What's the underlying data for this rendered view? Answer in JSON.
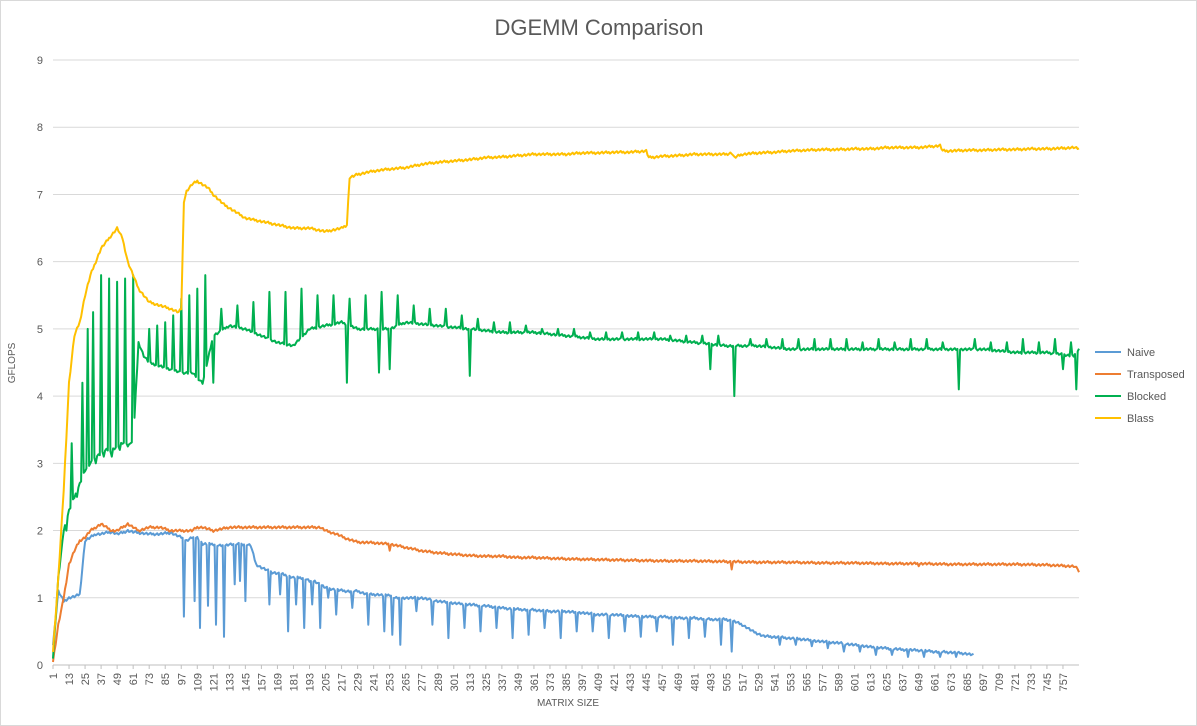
{
  "chart_data": {
    "type": "line",
    "title": "DGEMM Comparison",
    "xlabel": "MATRIX SIZE",
    "ylabel": "GFLOPS",
    "ylim": [
      0,
      9
    ],
    "yticks": [
      0,
      1,
      2,
      3,
      4,
      5,
      6,
      7,
      8,
      9
    ],
    "xlim": [
      1,
      769
    ],
    "xticks_start": 1,
    "xticks_step": 12,
    "xticks_end": 757,
    "grid": "horizontal",
    "legend_position": "right",
    "series": [
      {
        "name": "Naive",
        "color": "#5b9bd5",
        "x": [
          1,
          5,
          9,
          13,
          17,
          21,
          25,
          29,
          33,
          37,
          41,
          45,
          49,
          53,
          57,
          61,
          65,
          73,
          81,
          89,
          97,
          101,
          105,
          109,
          113,
          117,
          121,
          125,
          129,
          133,
          137,
          141,
          145,
          149,
          153,
          157,
          165,
          173,
          181,
          185,
          189,
          193,
          197,
          201,
          205,
          213,
          221,
          229,
          237,
          245,
          249,
          253,
          257,
          265,
          277,
          289,
          301,
          313,
          325,
          337,
          349,
          361,
          373,
          385,
          397,
          409,
          421,
          433,
          445,
          457,
          469,
          481,
          493,
          505,
          511,
          517,
          525,
          533,
          541,
          553,
          565,
          577,
          589,
          601,
          613,
          625,
          637,
          649,
          661,
          673,
          685,
          690
        ],
        "values": [
          0.3,
          1.1,
          0.95,
          1.0,
          1.02,
          1.05,
          1.85,
          1.9,
          1.95,
          1.95,
          1.97,
          1.98,
          1.95,
          1.97,
          2.0,
          1.98,
          1.97,
          1.95,
          1.95,
          1.97,
          1.9,
          1.85,
          1.9,
          1.9,
          1.8,
          1.8,
          1.8,
          1.78,
          1.78,
          1.8,
          1.8,
          1.8,
          1.8,
          1.78,
          1.5,
          1.45,
          1.38,
          1.35,
          1.3,
          1.3,
          1.3,
          1.25,
          1.25,
          1.2,
          1.15,
          1.12,
          1.1,
          1.1,
          1.05,
          1.05,
          1.03,
          1.05,
          1.0,
          1.0,
          1.0,
          0.95,
          0.92,
          0.9,
          0.88,
          0.85,
          0.83,
          0.82,
          0.8,
          0.8,
          0.78,
          0.75,
          0.75,
          0.73,
          0.72,
          0.72,
          0.7,
          0.7,
          0.68,
          0.68,
          0.65,
          0.6,
          0.5,
          0.43,
          0.42,
          0.4,
          0.38,
          0.35,
          0.33,
          0.3,
          0.27,
          0.25,
          0.23,
          0.22,
          0.2,
          0.19,
          0.17,
          0.15
        ],
        "dips": [
          [
            99,
            0.72
          ],
          [
            107,
            0.95
          ],
          [
            111,
            0.55
          ],
          [
            117,
            0.88
          ],
          [
            123,
            0.6
          ],
          [
            129,
            0.42
          ],
          [
            137,
            1.2
          ],
          [
            141,
            1.25
          ],
          [
            145,
            0.95
          ],
          [
            163,
            0.9
          ],
          [
            171,
            1.05
          ],
          [
            177,
            0.5
          ],
          [
            183,
            0.9
          ],
          [
            189,
            0.55
          ],
          [
            195,
            0.9
          ],
          [
            201,
            0.55
          ],
          [
            207,
            1.0
          ],
          [
            213,
            0.75
          ],
          [
            225,
            0.85
          ],
          [
            237,
            0.6
          ],
          [
            249,
            0.5
          ],
          [
            255,
            0.45
          ],
          [
            261,
            0.3
          ],
          [
            273,
            0.8
          ],
          [
            285,
            0.6
          ],
          [
            297,
            0.4
          ],
          [
            309,
            0.55
          ],
          [
            321,
            0.5
          ],
          [
            333,
            0.55
          ],
          [
            345,
            0.4
          ],
          [
            357,
            0.45
          ],
          [
            369,
            0.55
          ],
          [
            381,
            0.4
          ],
          [
            393,
            0.5
          ],
          [
            405,
            0.5
          ],
          [
            417,
            0.4
          ],
          [
            429,
            0.5
          ],
          [
            441,
            0.42
          ],
          [
            453,
            0.5
          ],
          [
            465,
            0.3
          ],
          [
            477,
            0.4
          ],
          [
            489,
            0.42
          ],
          [
            501,
            0.3
          ],
          [
            509,
            0.2
          ],
          [
            521,
            0.55
          ],
          [
            545,
            0.3
          ],
          [
            557,
            0.3
          ],
          [
            569,
            0.28
          ],
          [
            581,
            0.25
          ],
          [
            593,
            0.2
          ],
          [
            605,
            0.2
          ],
          [
            617,
            0.15
          ],
          [
            629,
            0.15
          ],
          [
            641,
            0.12
          ],
          [
            653,
            0.12
          ],
          [
            665,
            0.12
          ],
          [
            677,
            0.12
          ]
        ]
      },
      {
        "name": "Transposed",
        "color": "#ed7d31",
        "x": [
          1,
          5,
          9,
          13,
          17,
          21,
          25,
          29,
          33,
          37,
          41,
          45,
          49,
          53,
          57,
          61,
          65,
          73,
          81,
          89,
          97,
          105,
          109,
          113,
          121,
          133,
          145,
          157,
          169,
          181,
          193,
          201,
          205,
          213,
          221,
          229,
          241,
          253,
          265,
          277,
          289,
          301,
          313,
          325,
          337,
          349,
          361,
          385,
          409,
          433,
          457,
          481,
          505,
          529,
          553,
          577,
          601,
          625,
          649,
          673,
          697,
          721,
          745,
          765,
          769
        ],
        "values": [
          0.05,
          0.6,
          1.0,
          1.5,
          1.7,
          1.85,
          1.9,
          2.0,
          2.05,
          2.1,
          2.05,
          2.0,
          2.0,
          2.05,
          2.1,
          2.05,
          2.0,
          2.05,
          2.05,
          2.0,
          2.0,
          2.0,
          2.05,
          2.05,
          2.0,
          2.05,
          2.05,
          2.05,
          2.05,
          2.05,
          2.05,
          2.05,
          2.0,
          1.95,
          1.88,
          1.83,
          1.82,
          1.8,
          1.75,
          1.7,
          1.67,
          1.65,
          1.63,
          1.62,
          1.62,
          1.6,
          1.6,
          1.58,
          1.57,
          1.56,
          1.55,
          1.55,
          1.54,
          1.53,
          1.53,
          1.52,
          1.52,
          1.51,
          1.51,
          1.5,
          1.5,
          1.5,
          1.49,
          1.47,
          1.42
        ],
        "dips": [
          [
            253,
            1.7
          ],
          [
            509,
            1.42
          ],
          [
            649,
            1.47
          ],
          [
            769,
            1.38
          ]
        ]
      },
      {
        "name": "Blocked",
        "color": "#00b050",
        "x": [
          1,
          5,
          9,
          13,
          17,
          21,
          25,
          29,
          33,
          37,
          41,
          45,
          49,
          53,
          57,
          61,
          65,
          69,
          73,
          81,
          89,
          97,
          105,
          113,
          121,
          133,
          145,
          157,
          169,
          181,
          193,
          205,
          217,
          229,
          241,
          253,
          265,
          289,
          313,
          337,
          361,
          385,
          409,
          433,
          457,
          481,
          505,
          529,
          553,
          577,
          601,
          625,
          649,
          673,
          697,
          721,
          745,
          765,
          769
        ],
        "values": [
          0.1,
          1.3,
          2.0,
          2.3,
          2.5,
          2.7,
          2.9,
          3.0,
          3.1,
          3.15,
          3.2,
          3.2,
          3.25,
          3.3,
          3.3,
          3.3,
          4.8,
          4.6,
          4.5,
          4.45,
          4.4,
          4.35,
          4.35,
          4.2,
          4.9,
          5.05,
          5.0,
          4.9,
          4.8,
          4.75,
          5.0,
          5.05,
          5.1,
          5.0,
          5.0,
          5.0,
          5.1,
          5.05,
          5.0,
          4.95,
          4.95,
          4.9,
          4.85,
          4.85,
          4.85,
          4.8,
          4.75,
          4.75,
          4.7,
          4.7,
          4.7,
          4.7,
          4.7,
          4.7,
          4.7,
          4.65,
          4.65,
          4.6,
          4.7
        ],
        "spikes": [
          [
            11,
            2.0
          ],
          [
            15,
            3.3
          ],
          [
            19,
            2.5
          ],
          [
            23,
            4.2
          ],
          [
            27,
            5.0
          ],
          [
            31,
            5.25
          ],
          [
            33,
            3.0
          ],
          [
            37,
            5.8
          ],
          [
            39,
            3.1
          ],
          [
            43,
            5.75
          ],
          [
            45,
            3.1
          ],
          [
            49,
            5.7
          ],
          [
            51,
            3.2
          ],
          [
            55,
            5.75
          ],
          [
            57,
            3.25
          ],
          [
            61,
            5.8
          ],
          [
            73,
            5.0
          ],
          [
            79,
            5.05
          ],
          [
            85,
            5.1
          ],
          [
            91,
            5.2
          ],
          [
            97,
            5.45
          ],
          [
            103,
            5.5
          ],
          [
            109,
            5.6
          ],
          [
            115,
            5.8
          ],
          [
            121,
            4.2
          ],
          [
            127,
            5.3
          ],
          [
            139,
            5.35
          ],
          [
            151,
            5.4
          ],
          [
            163,
            5.55
          ],
          [
            175,
            5.55
          ],
          [
            187,
            5.6
          ],
          [
            199,
            5.5
          ],
          [
            211,
            5.5
          ],
          [
            221,
            4.2
          ],
          [
            223,
            5.45
          ],
          [
            235,
            5.5
          ],
          [
            245,
            4.35
          ],
          [
            247,
            5.55
          ],
          [
            253,
            4.4
          ],
          [
            259,
            5.5
          ],
          [
            271,
            5.35
          ],
          [
            283,
            5.3
          ],
          [
            295,
            5.3
          ],
          [
            307,
            5.2
          ],
          [
            313,
            4.3
          ],
          [
            319,
            5.15
          ],
          [
            331,
            5.1
          ],
          [
            343,
            5.1
          ],
          [
            355,
            5.05
          ],
          [
            367,
            5.0
          ],
          [
            379,
            5.0
          ],
          [
            391,
            5.0
          ],
          [
            403,
            4.95
          ],
          [
            415,
            4.95
          ],
          [
            427,
            4.95
          ],
          [
            439,
            4.95
          ],
          [
            451,
            4.95
          ],
          [
            463,
            4.9
          ],
          [
            475,
            4.9
          ],
          [
            487,
            4.9
          ],
          [
            493,
            4.4
          ],
          [
            499,
            4.9
          ],
          [
            511,
            4.0
          ],
          [
            523,
            4.85
          ],
          [
            535,
            4.85
          ],
          [
            547,
            4.85
          ],
          [
            559,
            4.85
          ],
          [
            571,
            4.85
          ],
          [
            583,
            4.85
          ],
          [
            595,
            4.85
          ],
          [
            607,
            4.8
          ],
          [
            619,
            4.85
          ],
          [
            631,
            4.8
          ],
          [
            643,
            4.85
          ],
          [
            655,
            4.85
          ],
          [
            667,
            4.8
          ],
          [
            679,
            4.1
          ],
          [
            691,
            4.85
          ],
          [
            703,
            4.8
          ],
          [
            715,
            4.8
          ],
          [
            727,
            4.85
          ],
          [
            739,
            4.8
          ],
          [
            751,
            4.85
          ],
          [
            757,
            4.4
          ],
          [
            763,
            4.8
          ],
          [
            767,
            4.1
          ]
        ]
      },
      {
        "name": "Blass",
        "color": "#ffc000",
        "x": [
          1,
          5,
          9,
          13,
          17,
          21,
          25,
          29,
          33,
          37,
          41,
          45,
          49,
          53,
          57,
          61,
          65,
          69,
          73,
          81,
          89,
          95,
          97,
          99,
          101,
          105,
          109,
          113,
          117,
          121,
          129,
          137,
          145,
          157,
          169,
          181,
          193,
          205,
          217,
          221,
          223,
          229,
          241,
          253,
          265,
          277,
          289,
          301,
          313,
          325,
          337,
          349,
          361,
          373,
          385,
          397,
          409,
          421,
          433,
          445,
          447,
          457,
          469,
          481,
          493,
          505,
          509,
          511,
          517,
          529,
          541,
          553,
          565,
          577,
          589,
          601,
          613,
          625,
          637,
          649,
          661,
          665,
          667,
          673,
          685,
          697,
          709,
          721,
          733,
          745,
          757,
          765,
          769
        ],
        "values": [
          0.2,
          1.3,
          2.6,
          4.2,
          4.9,
          5.1,
          5.5,
          5.8,
          6.0,
          6.2,
          6.3,
          6.4,
          6.5,
          6.35,
          6.0,
          5.8,
          5.6,
          5.5,
          5.4,
          5.35,
          5.3,
          5.25,
          5.3,
          6.9,
          7.05,
          7.15,
          7.2,
          7.15,
          7.1,
          7.0,
          6.85,
          6.75,
          6.65,
          6.6,
          6.55,
          6.5,
          6.5,
          6.45,
          6.5,
          6.55,
          7.25,
          7.3,
          7.35,
          7.38,
          7.4,
          7.45,
          7.48,
          7.5,
          7.52,
          7.55,
          7.56,
          7.58,
          7.6,
          7.6,
          7.6,
          7.62,
          7.62,
          7.63,
          7.63,
          7.65,
          7.55,
          7.57,
          7.58,
          7.6,
          7.6,
          7.6,
          7.62,
          7.55,
          7.6,
          7.62,
          7.63,
          7.65,
          7.66,
          7.67,
          7.67,
          7.68,
          7.68,
          7.7,
          7.7,
          7.7,
          7.72,
          7.73,
          7.65,
          7.65,
          7.66,
          7.66,
          7.67,
          7.67,
          7.68,
          7.68,
          7.69,
          7.7,
          7.68
        ]
      }
    ]
  }
}
